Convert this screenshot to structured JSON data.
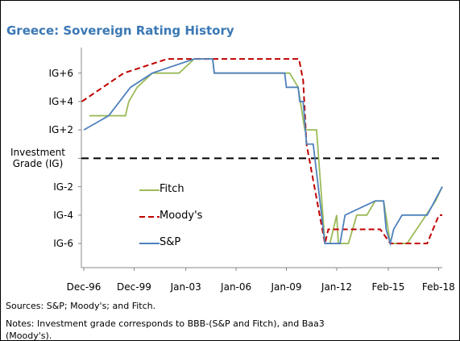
{
  "chart_data": {
    "type": "line",
    "title": "Greece: Sovereign Rating History",
    "sources": "Sources: S&P; Moody's; and Fitch.",
    "notes": "Notes: Investment grade corresponds to BBB-(S&P and Fitch), and Baa3 (Moody's).",
    "xlim": [
      1996.77,
      2018.3
    ],
    "ylim": [
      -7.7,
      7.8
    ],
    "xticks": [
      {
        "value": 1996.92,
        "label": "Dec-96"
      },
      {
        "value": 1999.92,
        "label": "Dec-99"
      },
      {
        "value": 2003.0,
        "label": "Jan-03"
      },
      {
        "value": 2006.0,
        "label": "Jan-06"
      },
      {
        "value": 2009.0,
        "label": "Jan-09"
      },
      {
        "value": 2012.0,
        "label": "Jan-12"
      },
      {
        "value": 2015.08,
        "label": "Feb-15"
      },
      {
        "value": 2018.08,
        "label": "Feb-18"
      }
    ],
    "yticks": [
      {
        "value": 6,
        "label": "IG+6"
      },
      {
        "value": 4,
        "label": "IG+4"
      },
      {
        "value": 2,
        "label": "IG+2"
      },
      {
        "value": 0,
        "label": "Investment Grade (IG)"
      },
      {
        "value": -2,
        "label": "IG-2"
      },
      {
        "value": -4,
        "label": "IG-4"
      },
      {
        "value": -6,
        "label": "IG-6"
      }
    ],
    "reference_line": 0,
    "legend": "lower-left",
    "series": [
      {
        "name": "Fitch",
        "color": "#9bbb59",
        "dash": false,
        "x": [
          1997.25,
          1999.4,
          1999.6,
          2000.1,
          2001.0,
          2002.6,
          2003.5,
          2004.6,
          2004.7,
          2009.2,
          2009.7,
          2010.1,
          2010.8,
          2011.3,
          2011.6,
          2012.0,
          2012.1,
          2012.7,
          2013.2,
          2013.8,
          2014.3,
          2014.8,
          2015.2,
          2016.2,
          2017.9,
          2018.3
        ],
        "values": [
          3,
          3,
          4,
          5,
          6,
          6,
          7,
          7,
          6,
          6,
          5,
          2,
          2,
          -6,
          -6,
          -4,
          -6,
          -6,
          -4,
          -4,
          -3,
          -3,
          -6,
          -6,
          -3,
          -2
        ]
      },
      {
        "name": "Moody's",
        "color": "#c00000",
        "dash": true,
        "x": [
          1996.8,
          1999.3,
          2001.9,
          2003.0,
          2009.75,
          2010.0,
          2010.2,
          2011.3,
          2011.5,
          2014.6,
          2015.2,
          2017.4,
          2018.1,
          2018.3
        ],
        "values": [
          4,
          6,
          7,
          7,
          7,
          5.5,
          1,
          -6,
          -5,
          -5,
          -6,
          -6,
          -4,
          -4
        ]
      },
      {
        "name": "S&P",
        "color": "#4f81bd",
        "dash": false,
        "x": [
          1996.92,
          1998.4,
          1999.7,
          2001.0,
          2003.5,
          2004.6,
          2004.7,
          2008.9,
          2009.0,
          2009.7,
          2009.8,
          2010.0,
          2010.2,
          2010.6,
          2011.3,
          2012.2,
          2012.5,
          2014.3,
          2014.8,
          2014.95,
          2015.2,
          2015.4,
          2015.9,
          2017.4,
          2018.3
        ],
        "values": [
          2,
          3,
          5,
          6,
          7,
          7,
          6,
          6,
          5,
          5,
          4,
          4,
          1,
          1,
          -6,
          -6,
          -4,
          -3,
          -3,
          -5,
          -6,
          -5,
          -4,
          -4,
          -2
        ]
      }
    ]
  }
}
